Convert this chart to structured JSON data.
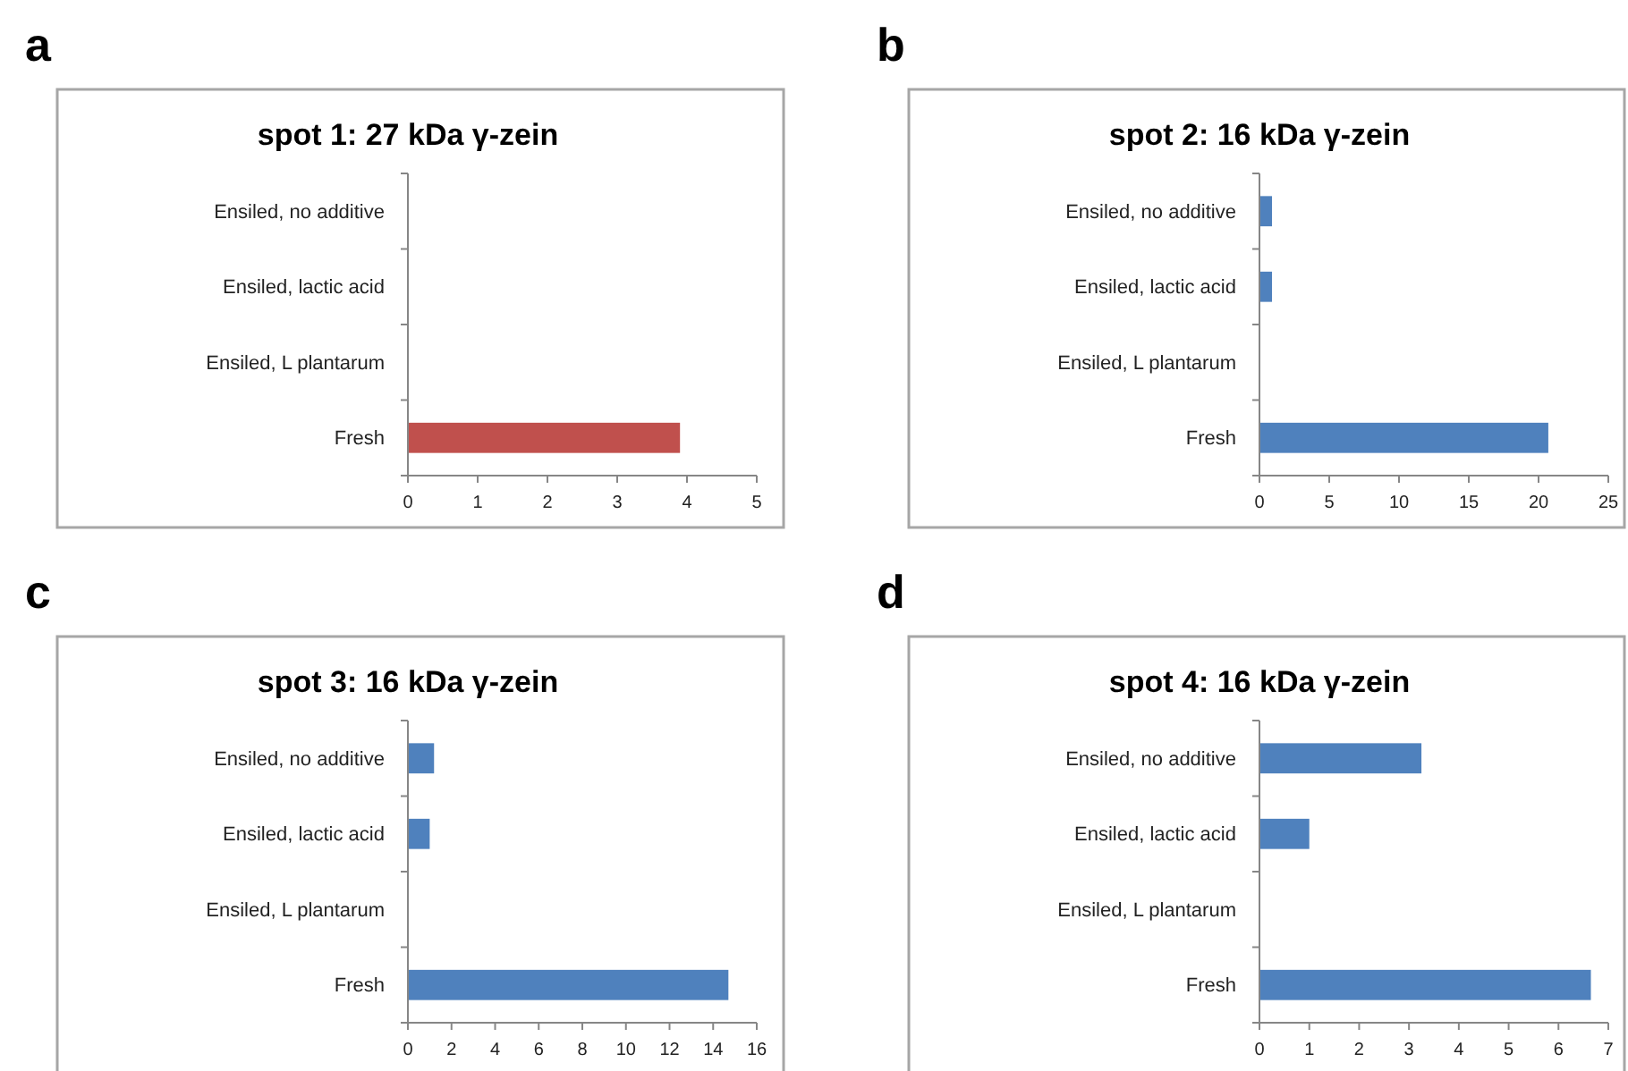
{
  "chart_data": [
    {
      "type": "bar",
      "orientation": "horizontal",
      "title": "spot 1: 27 kDa γ-zein",
      "annotations": [
        "a"
      ],
      "categories": [
        "Ensiled, no additive",
        "Ensiled, lactic acid",
        "Ensiled, L plantarum",
        "Fresh"
      ],
      "values": [
        0,
        0,
        0,
        3.9
      ],
      "color": "#c0504d",
      "xlim": [
        0,
        5
      ],
      "xticks": [
        0,
        1,
        2,
        3,
        4,
        5
      ],
      "grid": false
    },
    {
      "type": "bar",
      "orientation": "horizontal",
      "title": "spot 2: 16 kDa γ-zein",
      "annotations": [
        "b"
      ],
      "categories": [
        "Ensiled, no additive",
        "Ensiled, lactic acid",
        "Ensiled, L plantarum",
        "Fresh"
      ],
      "values": [
        0.9,
        0.9,
        0,
        20.7
      ],
      "color": "#4f81bd",
      "xlim": [
        0,
        25
      ],
      "xticks": [
        0,
        5,
        10,
        15,
        20,
        25
      ],
      "grid": false
    },
    {
      "type": "bar",
      "orientation": "horizontal",
      "title": "spot 3: 16 kDa γ-zein",
      "annotations": [
        "c"
      ],
      "categories": [
        "Ensiled, no additive",
        "Ensiled, lactic acid",
        "Ensiled, L plantarum",
        "Fresh"
      ],
      "values": [
        1.2,
        1.0,
        0,
        14.7
      ],
      "color": "#4f81bd",
      "xlim": [
        0,
        16
      ],
      "xticks": [
        0,
        2,
        4,
        6,
        8,
        10,
        12,
        14,
        16
      ],
      "grid": false
    },
    {
      "type": "bar",
      "orientation": "horizontal",
      "title": "spot 4: 16 kDa γ-zein",
      "annotations": [
        "d"
      ],
      "categories": [
        "Ensiled, no additive",
        "Ensiled, lactic acid",
        "Ensiled, L plantarum",
        "Fresh"
      ],
      "values": [
        3.25,
        1.0,
        0,
        6.65
      ],
      "color": "#4f81bd",
      "xlim": [
        0,
        7
      ],
      "xticks": [
        0,
        1,
        2,
        3,
        4,
        5,
        6,
        7
      ],
      "grid": false
    }
  ]
}
